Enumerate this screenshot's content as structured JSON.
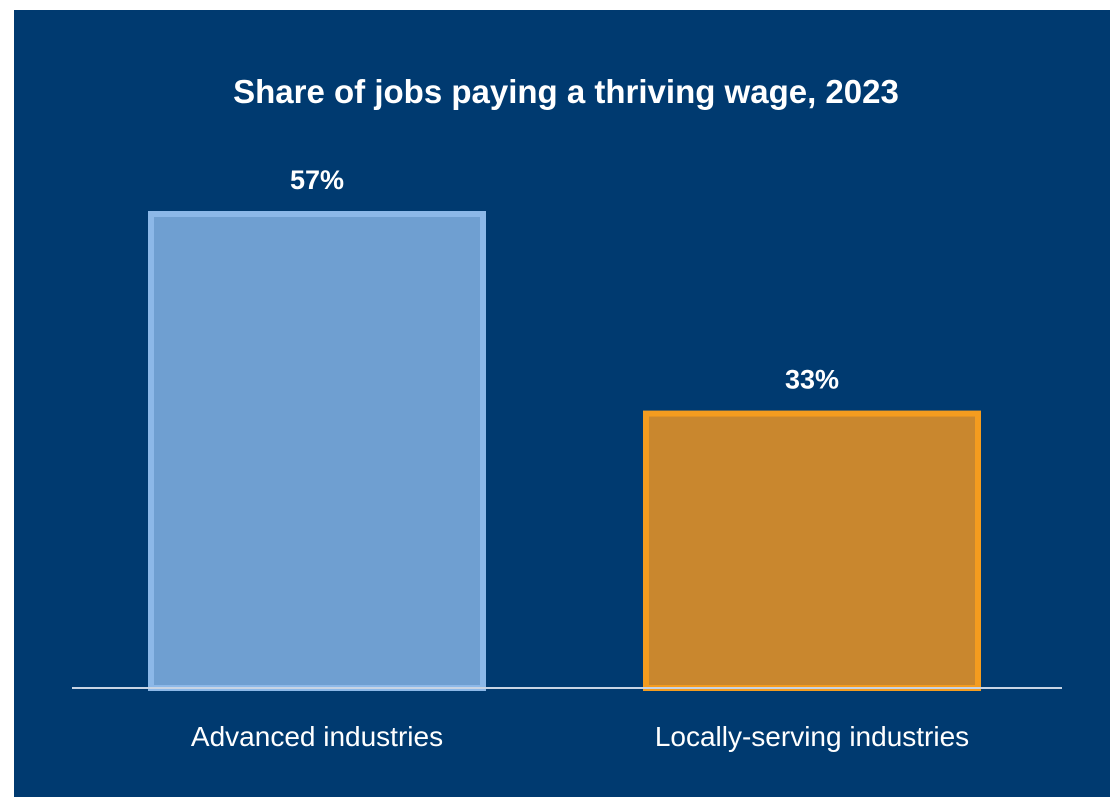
{
  "chart_data": {
    "type": "bar",
    "title": "Share of jobs paying a thriving wage, 2023",
    "categories": [
      "Advanced industries",
      "Locally-serving industries"
    ],
    "values": [
      57,
      33
    ],
    "value_labels": [
      "57%",
      "33%"
    ],
    "unit": "%",
    "ylim": [
      0,
      57
    ],
    "grid": false,
    "legend": "none",
    "xlabel": "",
    "ylabel": "",
    "colors": {
      "background": "#003a70",
      "bar_fills": [
        "#6f9fd1",
        "#c9872e"
      ],
      "bar_strokes": [
        "#8cb8e8",
        "#f49c1f"
      ],
      "baseline": "#c8d4e4",
      "text": "#ffffff"
    }
  }
}
